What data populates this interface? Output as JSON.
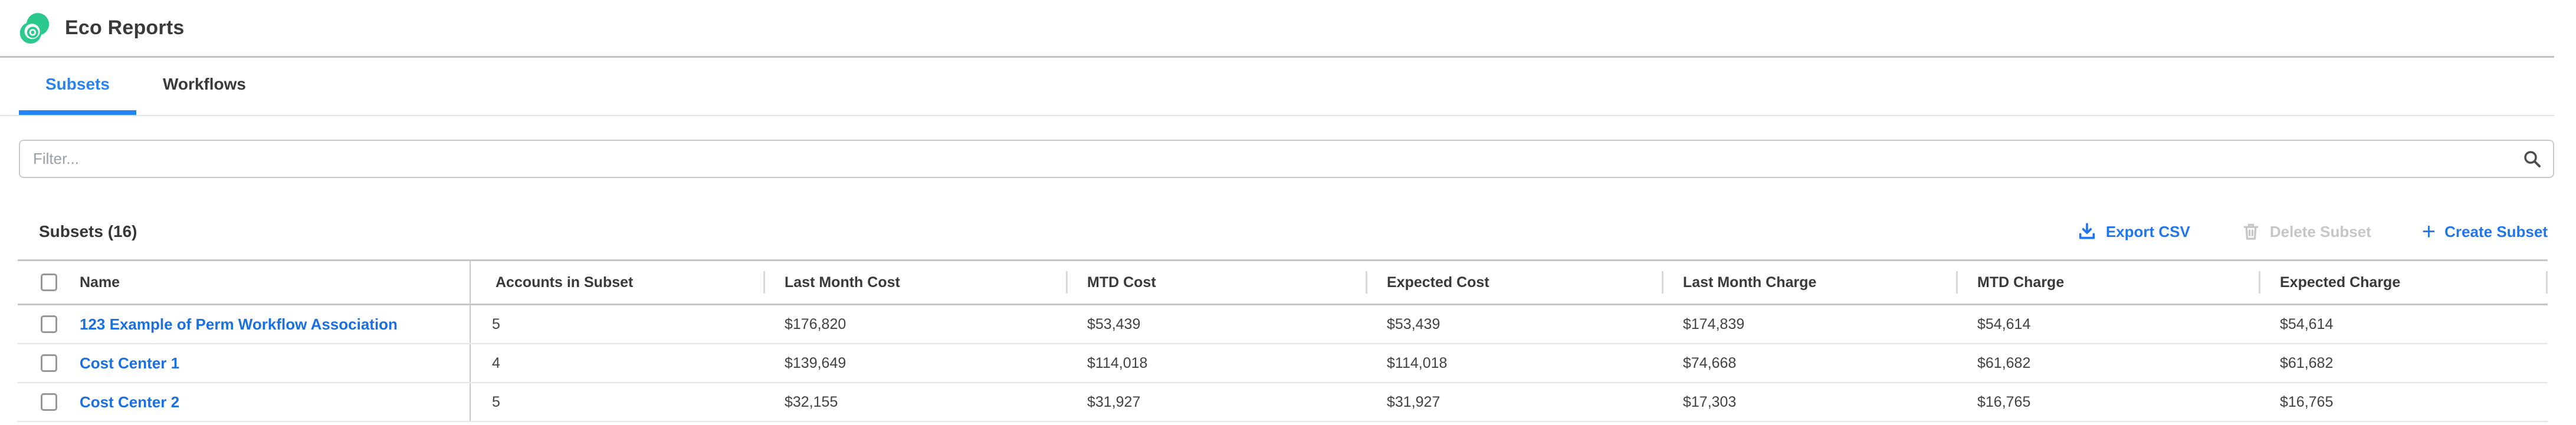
{
  "app": {
    "title": "Eco Reports",
    "logo_icon": "eco-swirl-logo"
  },
  "colors": {
    "logo_green": "#2bc98e",
    "accent_blue": "#2176ee",
    "tab_active_blue": "#2583f2",
    "link_blue": "#1a6fe3",
    "disabled_gray": "#c6c6c6",
    "heading_text": "#3a3a3a",
    "body_text": "#424242",
    "strong_border": "#c3c5c7",
    "row_divider": "#e2e6ec"
  },
  "tabs": [
    {
      "label": "Subsets",
      "active": true
    },
    {
      "label": "Workflows",
      "active": false
    }
  ],
  "filter": {
    "placeholder": "Filter...",
    "value": "",
    "icon": "search-icon"
  },
  "subsets": {
    "heading": "Subsets (16)",
    "actions": {
      "export": {
        "label": "Export CSV",
        "icon": "download-icon",
        "enabled": true
      },
      "delete": {
        "label": "Delete Subset",
        "icon": "trash-icon",
        "enabled": false
      },
      "create": {
        "label": "Create Subset",
        "icon": "plus-icon",
        "enabled": true
      }
    },
    "table": {
      "columns": [
        "Name",
        "Accounts in Subset",
        "Last Month Cost",
        "MTD Cost",
        "Expected Cost",
        "Last Month Charge",
        "MTD Charge",
        "Expected Charge"
      ],
      "rows": [
        {
          "name": "123 Example of Perm Workflow Association",
          "checked": false,
          "values": [
            "5",
            "$176,820",
            "$53,439",
            "$53,439",
            "$174,839",
            "$54,614",
            "$54,614"
          ]
        },
        {
          "name": "Cost Center 1",
          "checked": false,
          "values": [
            "4",
            "$139,649",
            "$114,018",
            "$114,018",
            "$74,668",
            "$61,682",
            "$61,682"
          ]
        },
        {
          "name": "Cost Center 2",
          "checked": false,
          "values": [
            "5",
            "$32,155",
            "$31,927",
            "$31,927",
            "$17,303",
            "$16,765",
            "$16,765"
          ]
        }
      ]
    }
  }
}
